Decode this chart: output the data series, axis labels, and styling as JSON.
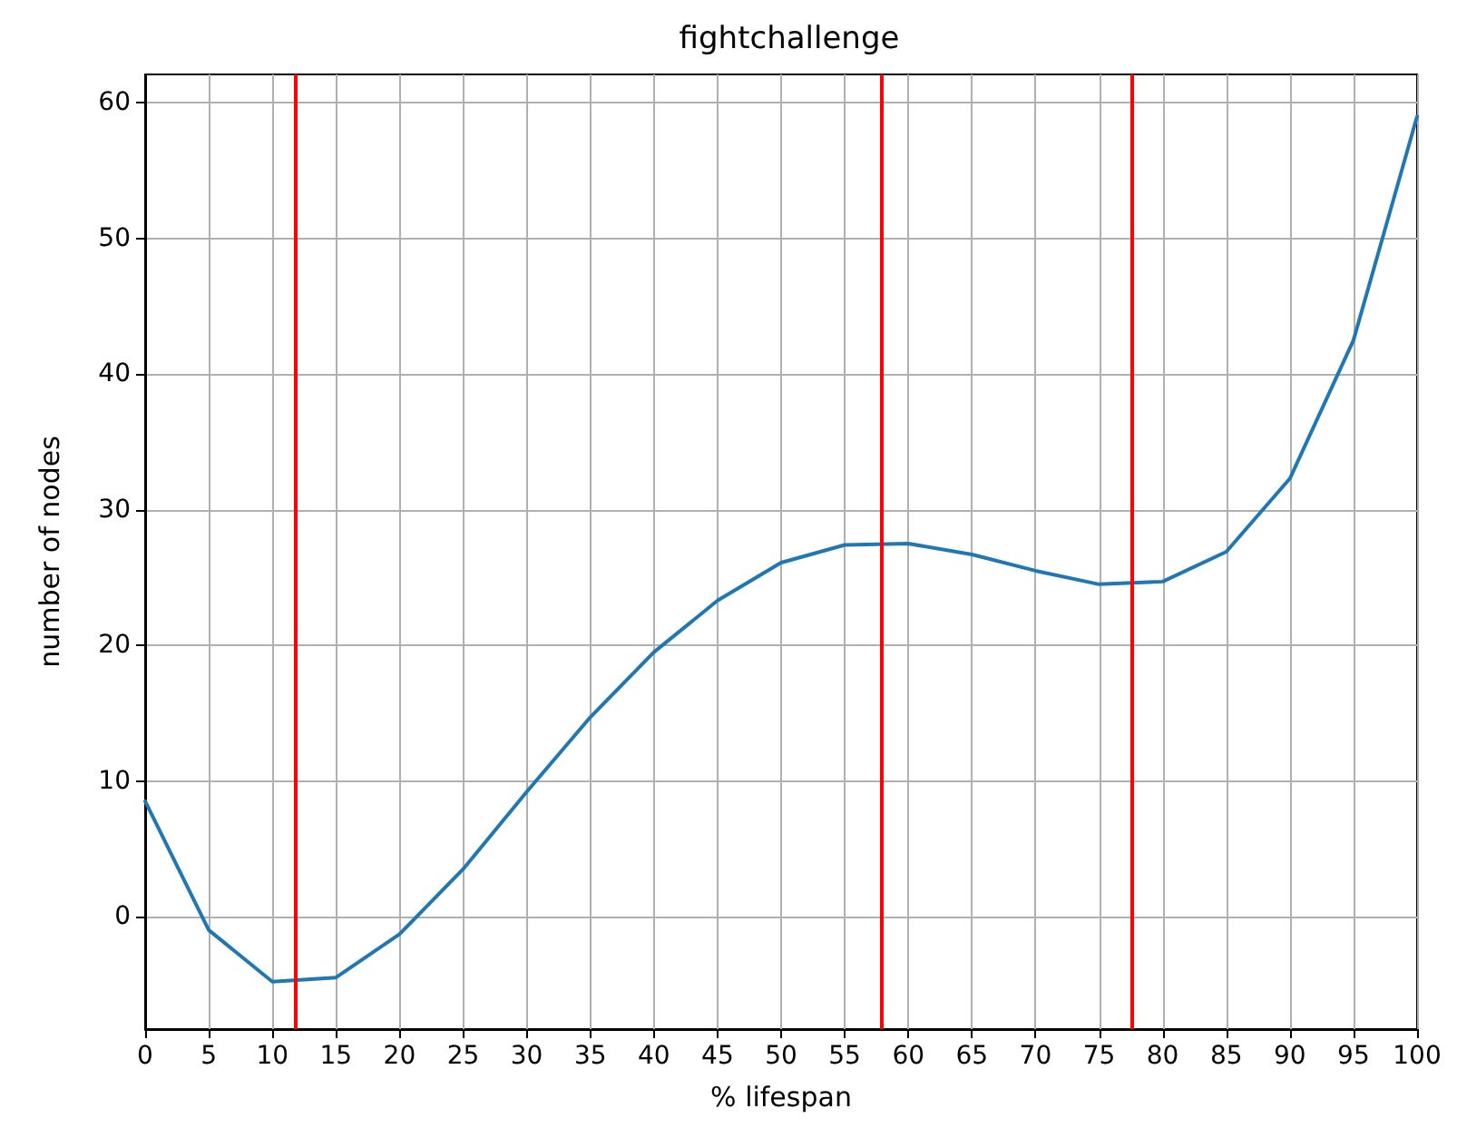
{
  "chart_data": {
    "type": "line",
    "title": "fightchallenge",
    "xlabel": "% lifespan",
    "ylabel": "number of nodes",
    "x": [
      0,
      5,
      10,
      15,
      20,
      25,
      30,
      35,
      40,
      45,
      50,
      55,
      60,
      65,
      70,
      75,
      80,
      85,
      90,
      95,
      100
    ],
    "series": [
      {
        "color": "#1f77b4",
        "values": [
          8.5,
          -1,
          -4.8,
          -4.5,
          -1.3,
          3.5,
          9.2,
          14.7,
          19.5,
          23.3,
          26.1,
          27.4,
          27.5,
          26.7,
          25.5,
          24.5,
          24.7,
          26.9,
          32.3,
          42.5,
          59
        ]
      }
    ],
    "xlim": [
      0,
      100
    ],
    "xticks": [
      0,
      5,
      10,
      15,
      20,
      25,
      30,
      35,
      40,
      45,
      50,
      55,
      60,
      65,
      70,
      75,
      80,
      85,
      90,
      95,
      100
    ],
    "ylim": [
      -8.3,
      62.1
    ],
    "yticks": [
      0,
      10,
      20,
      30,
      40,
      50,
      60
    ],
    "ref_lines": [
      {
        "axis": "x",
        "value": 11.8,
        "color": "#ff0000"
      },
      {
        "axis": "x",
        "value": 57.9,
        "color": "#ff0000"
      },
      {
        "axis": "x",
        "value": 77.5,
        "color": "#ff0000"
      }
    ],
    "grid": true,
    "marker": "none",
    "line_style": "solid"
  }
}
